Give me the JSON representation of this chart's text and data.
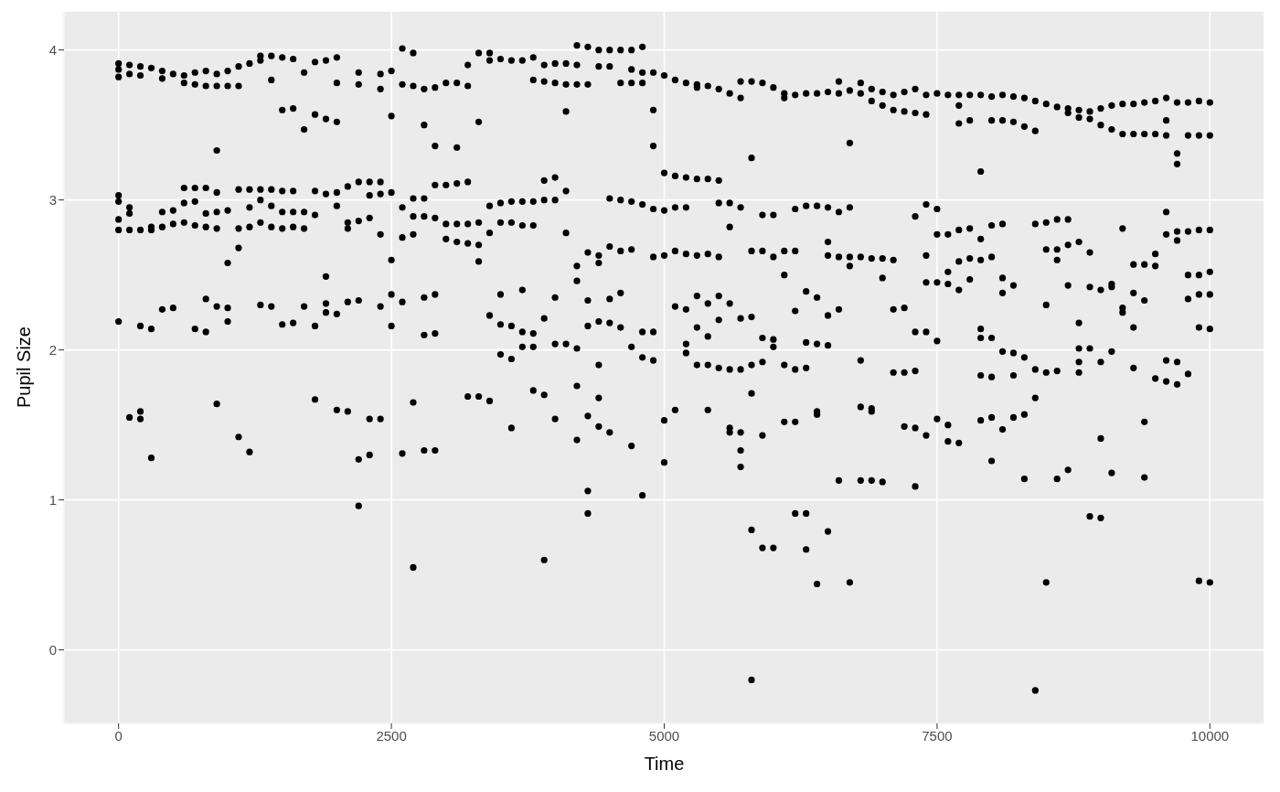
{
  "chart_data": {
    "type": "scatter",
    "xlabel": "Time",
    "ylabel": "Pupil Size",
    "xlim": [
      -500,
      10500
    ],
    "ylim": [
      -0.49,
      4.26
    ],
    "xticks": [
      0,
      2500,
      5000,
      7500,
      10000
    ],
    "yticks": [
      0,
      1,
      2,
      3,
      4
    ],
    "grid": true,
    "marker": "circle",
    "color": "#000000",
    "x": [
      0,
      0,
      0,
      0,
      0,
      0,
      0,
      0,
      100,
      100,
      100,
      100,
      100,
      100,
      200,
      200,
      200,
      200,
      200,
      200,
      300,
      300,
      300,
      300,
      300,
      400,
      400,
      400,
      400,
      400,
      500,
      500,
      500,
      500,
      600,
      600,
      600,
      600,
      600,
      700,
      700,
      700,
      700,
      700,
      700,
      800,
      800,
      800,
      800,
      800,
      800,
      800,
      900,
      900,
      900,
      900,
      900,
      900,
      900,
      900,
      1000,
      1000,
      1000,
      1000,
      1000,
      1000,
      1100,
      1100,
      1100,
      1100,
      1100,
      1100,
      1200,
      1200,
      1200,
      1200,
      1200,
      1300,
      1300,
      1300,
      1300,
      1300,
      1300,
      1400,
      1400,
      1400,
      1400,
      1400,
      1400,
      1500,
      1500,
      1500,
      1500,
      1500,
      1500,
      1600,
      1600,
      1600,
      1600,
      1600,
      1600,
      1700,
      1700,
      1700,
      1700,
      1700,
      1800,
      1800,
      1800,
      1800,
      1800,
      1800,
      1900,
      1900,
      1900,
      1900,
      1900,
      1900,
      2000,
      2000,
      2000,
      2000,
      2000,
      2000,
      2000,
      2100,
      2100,
      2100,
      2100,
      2100,
      2200,
      2200,
      2200,
      2200,
      2200,
      2200,
      2200,
      2300,
      2300,
      2300,
      2300,
      2300,
      2400,
      2400,
      2400,
      2400,
      2400,
      2400,
      2400,
      2500,
      2500,
      2500,
      2500,
      2500,
      2500,
      2600,
      2600,
      2600,
      2600,
      2600,
      2600,
      2700,
      2700,
      2700,
      2700,
      2700,
      2700,
      2700,
      2800,
      2800,
      2800,
      2800,
      2800,
      2800,
      2800,
      2900,
      2900,
      2900,
      2900,
      2900,
      2900,
      2900,
      3000,
      3000,
      3000,
      3000,
      3100,
      3100,
      3100,
      3100,
      3100,
      3200,
      3200,
      3200,
      3200,
      3200,
      3200,
      3300,
      3300,
      3300,
      3300,
      3300,
      3300,
      3400,
      3400,
      3400,
      3400,
      3400,
      3400,
      3500,
      3500,
      3500,
      3500,
      3500,
      3500,
      3600,
      3600,
      3600,
      3600,
      3600,
      3600,
      3700,
      3700,
      3700,
      3700,
      3700,
      3700,
      3800,
      3800,
      3800,
      3800,
      3800,
      3800,
      3800,
      3900,
      3900,
      3900,
      3900,
      3900,
      3900,
      3900,
      4000,
      4000,
      4000,
      4000,
      4000,
      4000,
      4000,
      4100,
      4100,
      4100,
      4100,
      4100,
      4100,
      4200,
      4200,
      4200,
      4200,
      4200,
      4200,
      4200,
      4200,
      4300,
      4300,
      4300,
      4300,
      4300,
      4300,
      4300,
      4300,
      4400,
      4400,
      4400,
      4400,
      4400,
      4400,
      4400,
      4400,
      4500,
      4500,
      4500,
      4500,
      4500,
      4500,
      4500,
      4600,
      4600,
      4600,
      4600,
      4600,
      4600,
      4700,
      4700,
      4700,
      4700,
      4700,
      4700,
      4700,
      4800,
      4800,
      4800,
      4800,
      4800,
      4800,
      4800,
      4900,
      4900,
      4900,
      4900,
      4900,
      4900,
      4900,
      5000,
      5000,
      5000,
      5000,
      5000,
      5000,
      5100,
      5100,
      5100,
      5100,
      5100,
      5100,
      5200,
      5200,
      5200,
      5200,
      5200,
      5200,
      5200,
      5300,
      5300,
      5300,
      5300,
      5300,
      5300,
      5300,
      5400,
      5400,
      5400,
      5400,
      5400,
      5400,
      5400,
      5500,
      5500,
      5500,
      5500,
      5500,
      5500,
      5500,
      5600,
      5600,
      5600,
      5600,
      5600,
      5600,
      5600,
      5700,
      5700,
      5700,
      5700,
      5700,
      5700,
      5700,
      5700,
      5800,
      5800,
      5800,
      5800,
      5800,
      5800,
      5800,
      5800,
      5900,
      5900,
      5900,
      5900,
      5900,
      5900,
      5900,
      6000,
      6000,
      6000,
      6000,
      6000,
      6000,
      6100,
      6100,
      6100,
      6100,
      6100,
      6100,
      6200,
      6200,
      6200,
      6200,
      6200,
      6200,
      6200,
      6300,
      6300,
      6300,
      6300,
      6300,
      6300,
      6300,
      6400,
      6400,
      6400,
      6400,
      6400,
      6400,
      6400,
      6500,
      6500,
      6500,
      6500,
      6500,
      6500,
      6500,
      6600,
      6600,
      6600,
      6600,
      6600,
      6600,
      6700,
      6700,
      6700,
      6700,
      6700,
      6700,
      6800,
      6800,
      6800,
      6800,
      6800,
      6800,
      6900,
      6900,
      6900,
      6900,
      6900,
      6900,
      7000,
      7000,
      7000,
      7000,
      7000,
      7100,
      7100,
      7100,
      7100,
      7100,
      7200,
      7200,
      7200,
      7200,
      7200,
      7300,
      7300,
      7300,
      7300,
      7300,
      7300,
      7300,
      7400,
      7400,
      7400,
      7400,
      7400,
      7400,
      7400,
      7500,
      7500,
      7500,
      7500,
      7500,
      7500,
      7600,
      7600,
      7600,
      7600,
      7600,
      7600,
      7700,
      7700,
      7700,
      7700,
      7700,
      7700,
      7700,
      7800,
      7800,
      7800,
      7800,
      7800,
      7900,
      7900,
      7900,
      7900,
      7900,
      7900,
      7900,
      7900,
      8000,
      8000,
      8000,
      8000,
      8000,
      8000,
      8000,
      8000,
      8100,
      8100,
      8100,
      8100,
      8100,
      8100,
      8100,
      8200,
      8200,
      8200,
      8200,
      8200,
      8200,
      8300,
      8300,
      8300,
      8300,
      8300,
      8400,
      8400,
      8400,
      8400,
      8400,
      8400,
      8500,
      8500,
      8500,
      8500,
      8500,
      8500,
      8600,
      8600,
      8600,
      8600,
      8600,
      8600,
      8700,
      8700,
      8700,
      8700,
      8700,
      8700,
      8800,
      8800,
      8800,
      8800,
      8800,
      8800,
      8800,
      8900,
      8900,
      8900,
      8900,
      8900,
      8900,
      9000,
      9000,
      9000,
      9000,
      9000,
      9000,
      9100,
      9100,
      9100,
      9100,
      9100,
      9100,
      9200,
      9200,
      9200,
      9200,
      9200,
      9300,
      9300,
      9300,
      9300,
      9300,
      9300,
      9400,
      9400,
      9400,
      9400,
      9400,
      9400,
      9500,
      9500,
      9500,
      9500,
      9500,
      9600,
      9600,
      9600,
      9600,
      9600,
      9600,
      9600,
      9700,
      9700,
      9700,
      9700,
      9700,
      9700,
      9700,
      9800,
      9800,
      9800,
      9800,
      9800,
      9800,
      9900,
      9900,
      9900,
      9900,
      9900,
      9900,
      9900,
      10000,
      10000,
      10000,
      10000,
      10000,
      10000,
      10000
    ],
    "values": [
      3.91,
      3.87,
      3.82,
      3.03,
      2.99,
      2.87,
      2.8,
      2.19,
      3.9,
      3.84,
      2.95,
      2.91,
      2.8,
      1.55,
      3.89,
      3.83,
      2.8,
      2.16,
      1.59,
      1.54,
      3.88,
      2.82,
      2.8,
      2.14,
      1.28,
      3.86,
      3.81,
      2.92,
      2.82,
      2.27,
      3.84,
      2.93,
      2.84,
      2.28,
      3.83,
      3.78,
      3.08,
      2.98,
      2.85,
      3.85,
      3.77,
      3.08,
      2.99,
      2.83,
      2.14,
      3.86,
      3.76,
      3.08,
      2.91,
      2.82,
      2.34,
      2.12,
      3.84,
      3.76,
      3.33,
      3.05,
      2.92,
      2.81,
      2.29,
      1.64,
      3.86,
      3.76,
      2.93,
      2.58,
      2.28,
      2.19,
      3.89,
      3.76,
      3.07,
      2.81,
      2.68,
      1.42,
      3.91,
      3.07,
      2.95,
      2.82,
      1.32,
      3.96,
      3.93,
      3.07,
      3.0,
      2.85,
      2.3,
      3.96,
      3.8,
      3.07,
      2.96,
      2.82,
      2.29,
      3.95,
      3.6,
      3.06,
      2.92,
      2.81,
      2.17,
      3.94,
      3.61,
      3.06,
      2.92,
      2.82,
      2.18,
      3.85,
      3.47,
      2.92,
      2.81,
      2.29,
      3.92,
      3.57,
      3.06,
      2.9,
      2.16,
      1.67,
      3.93,
      3.54,
      3.04,
      2.49,
      2.31,
      2.25,
      3.95,
      3.78,
      3.52,
      3.05,
      2.96,
      2.24,
      1.6,
      3.09,
      2.85,
      2.81,
      2.32,
      1.59,
      3.85,
      3.77,
      3.12,
      2.86,
      2.33,
      1.27,
      0.96,
      3.12,
      3.03,
      2.88,
      1.54,
      1.3,
      3.84,
      3.74,
      3.12,
      3.04,
      2.77,
      2.29,
      1.54,
      3.86,
      3.56,
      3.05,
      2.6,
      2.37,
      2.16,
      4.01,
      3.77,
      2.95,
      2.75,
      2.32,
      1.31,
      3.98,
      3.76,
      3.01,
      2.89,
      2.77,
      1.65,
      0.55,
      3.74,
      3.5,
      3.01,
      2.89,
      2.35,
      2.1,
      1.33,
      3.75,
      3.36,
      3.1,
      2.88,
      2.37,
      2.11,
      1.33,
      3.78,
      3.1,
      2.84,
      2.74,
      3.78,
      3.35,
      3.11,
      2.84,
      2.72,
      3.9,
      3.76,
      3.12,
      2.84,
      2.71,
      1.69,
      3.98,
      3.52,
      2.85,
      2.7,
      2.59,
      1.69,
      3.98,
      3.93,
      2.96,
      2.78,
      2.23,
      1.66,
      3.94,
      2.98,
      2.85,
      2.37,
      2.17,
      1.97,
      3.93,
      2.99,
      2.85,
      2.16,
      1.94,
      1.48,
      3.93,
      2.99,
      2.83,
      2.4,
      2.12,
      2.02,
      3.95,
      3.8,
      2.99,
      2.83,
      2.11,
      2.02,
      1.73,
      3.9,
      3.79,
      3.13,
      3.0,
      2.21,
      1.7,
      0.6,
      3.91,
      3.78,
      3.15,
      3.0,
      2.35,
      2.04,
      1.54,
      3.91,
      3.77,
      3.59,
      3.06,
      2.78,
      2.04,
      4.03,
      3.9,
      3.77,
      2.56,
      2.46,
      2.01,
      1.76,
      1.4,
      4.02,
      3.77,
      2.65,
      2.33,
      2.16,
      1.56,
      1.06,
      0.91,
      4.0,
      3.89,
      2.63,
      2.58,
      2.19,
      1.9,
      1.68,
      1.49,
      4.0,
      3.89,
      3.01,
      2.69,
      2.34,
      2.18,
      1.45,
      4.0,
      3.78,
      3.0,
      2.66,
      2.38,
      2.15,
      4.0,
      3.87,
      3.78,
      2.99,
      2.67,
      2.02,
      1.36,
      4.02,
      3.85,
      3.78,
      2.97,
      2.12,
      1.95,
      1.03,
      3.85,
      3.6,
      3.36,
      2.94,
      2.62,
      2.12,
      1.93,
      3.83,
      3.18,
      2.93,
      2.63,
      1.53,
      1.25,
      3.8,
      3.16,
      2.95,
      2.66,
      2.29,
      1.6,
      3.78,
      3.15,
      2.95,
      2.64,
      2.27,
      2.04,
      1.98,
      3.77,
      3.75,
      3.14,
      2.63,
      2.36,
      2.15,
      1.9,
      3.76,
      3.14,
      2.64,
      2.31,
      2.09,
      1.9,
      1.6,
      3.74,
      3.13,
      2.98,
      2.62,
      2.36,
      2.2,
      1.88,
      3.71,
      2.98,
      2.82,
      2.31,
      1.87,
      1.48,
      1.45,
      3.79,
      3.68,
      2.95,
      2.21,
      1.87,
      1.45,
      1.33,
      1.22,
      3.79,
      3.28,
      2.66,
      2.22,
      1.9,
      1.71,
      0.8,
      -0.2,
      3.78,
      2.9,
      2.66,
      2.08,
      1.92,
      1.43,
      0.68,
      3.75,
      2.9,
      2.62,
      2.07,
      2.02,
      0.68,
      3.71,
      3.68,
      2.66,
      2.5,
      1.9,
      1.52,
      3.7,
      2.94,
      2.66,
      2.26,
      1.87,
      1.52,
      0.91,
      3.71,
      2.96,
      2.39,
      2.05,
      1.88,
      0.91,
      0.67,
      3.71,
      2.96,
      2.35,
      2.04,
      1.59,
      1.57,
      0.44,
      3.72,
      2.95,
      2.72,
      2.63,
      2.23,
      2.03,
      0.79,
      3.79,
      3.71,
      2.92,
      2.62,
      2.27,
      1.13,
      3.73,
      3.38,
      2.95,
      2.62,
      2.56,
      0.45,
      3.78,
      3.71,
      2.62,
      1.93,
      1.62,
      1.13,
      3.74,
      3.66,
      2.61,
      1.61,
      1.59,
      1.13,
      3.72,
      3.63,
      2.61,
      2.48,
      1.12,
      3.7,
      3.6,
      2.6,
      2.27,
      1.85,
      3.72,
      3.59,
      2.28,
      1.85,
      1.49,
      3.74,
      3.58,
      2.89,
      2.12,
      1.86,
      1.48,
      1.09,
      3.7,
      3.57,
      2.97,
      2.63,
      2.45,
      2.12,
      1.43,
      3.71,
      2.94,
      2.77,
      2.45,
      2.06,
      1.54,
      3.7,
      2.77,
      2.52,
      2.44,
      1.5,
      1.39,
      3.7,
      3.63,
      3.51,
      2.8,
      2.59,
      2.4,
      1.38,
      3.7,
      3.53,
      2.81,
      2.61,
      2.47,
      3.7,
      3.19,
      2.74,
      2.6,
      2.14,
      2.08,
      1.83,
      1.53,
      3.69,
      3.53,
      2.83,
      2.62,
      2.08,
      1.82,
      1.55,
      1.26,
      3.7,
      3.53,
      2.84,
      2.48,
      2.38,
      1.99,
      1.47,
      3.69,
      3.52,
      2.43,
      1.98,
      1.83,
      1.55,
      3.68,
      3.49,
      1.95,
      1.57,
      1.14,
      3.66,
      3.46,
      2.84,
      1.87,
      1.68,
      -0.27,
      3.64,
      2.85,
      2.67,
      2.3,
      1.85,
      0.45,
      3.62,
      2.87,
      2.67,
      2.6,
      1.86,
      1.14,
      3.61,
      3.58,
      2.87,
      2.7,
      2.43,
      1.2,
      3.6,
      3.55,
      2.72,
      2.18,
      2.01,
      1.92,
      1.85,
      3.59,
      3.54,
      2.65,
      2.42,
      2.01,
      0.89,
      3.61,
      3.5,
      2.4,
      1.92,
      1.41,
      0.88,
      3.63,
      3.47,
      2.44,
      2.42,
      1.99,
      1.18,
      3.64,
      3.44,
      2.81,
      2.28,
      2.25,
      3.64,
      3.44,
      2.57,
      2.38,
      2.15,
      1.88,
      3.65,
      3.44,
      2.57,
      2.33,
      1.52,
      1.15,
      3.66,
      3.44,
      2.64,
      2.56,
      1.81,
      3.68,
      3.53,
      3.43,
      2.92,
      2.77,
      1.93,
      1.79,
      3.65,
      3.31,
      3.24,
      2.79,
      2.73,
      1.92,
      1.77,
      3.65,
      3.43,
      2.79,
      2.5,
      2.34,
      1.84,
      3.66,
      3.43,
      2.8,
      2.5,
      2.37,
      2.15,
      0.46,
      3.65,
      3.43,
      2.8,
      2.52,
      2.37,
      2.14,
      0.45
    ]
  }
}
